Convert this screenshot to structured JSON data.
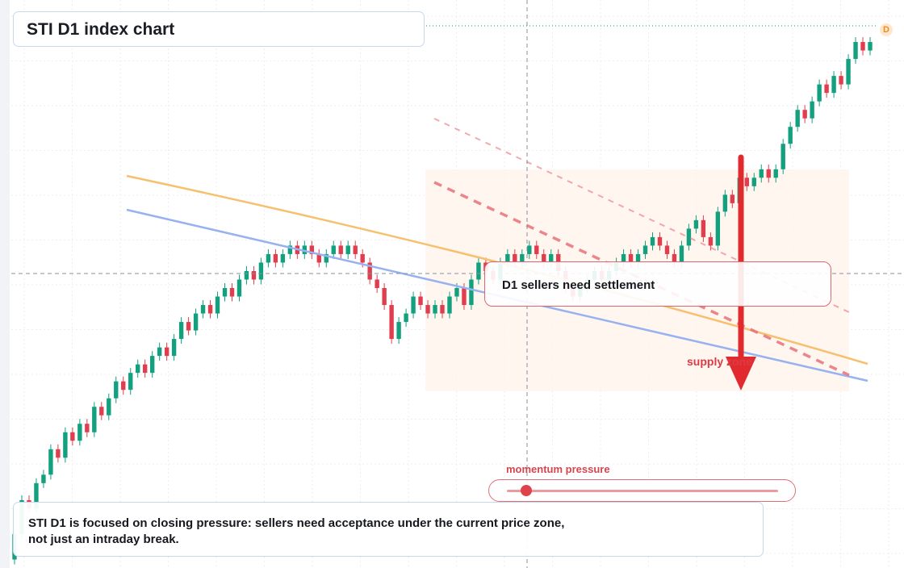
{
  "title": "STI D1 index chart",
  "callout": "D1 sellers need settlement",
  "supply_label": "supply zone",
  "momentum": {
    "label": "momentum pressure",
    "level": 0.07
  },
  "note": {
    "line1": "STI D1 is focused on closing pressure: sellers need acceptance under the current price zone,",
    "line2": "not just an intraday break."
  },
  "badge": "D",
  "colors": {
    "up": "#12a07e",
    "down": "#e03e4e",
    "ma_fast": "#f6c06f",
    "ma_slow": "#98b2f0",
    "trend": "#e8727a",
    "arrow": "#e02a2e",
    "zone": "#fff4ec"
  },
  "chart_data": {
    "type": "candlestick",
    "timeframe": "D1",
    "ylim": [
      96,
      162
    ],
    "grid": true,
    "candles": [
      [
        97,
        100
      ],
      [
        100,
        104
      ],
      [
        104,
        103
      ],
      [
        103,
        106
      ],
      [
        106,
        107
      ],
      [
        107,
        110
      ],
      [
        110,
        109
      ],
      [
        109,
        112
      ],
      [
        112,
        111
      ],
      [
        111,
        113
      ],
      [
        113,
        112
      ],
      [
        112,
        115
      ],
      [
        115,
        114
      ],
      [
        114,
        116
      ],
      [
        116,
        118
      ],
      [
        118,
        117
      ],
      [
        117,
        119
      ],
      [
        119,
        120
      ],
      [
        120,
        119
      ],
      [
        119,
        121
      ],
      [
        121,
        122
      ],
      [
        122,
        121
      ],
      [
        121,
        123
      ],
      [
        123,
        125
      ],
      [
        125,
        124
      ],
      [
        124,
        126
      ],
      [
        126,
        127
      ],
      [
        127,
        126
      ],
      [
        126,
        128
      ],
      [
        128,
        129
      ],
      [
        129,
        128
      ],
      [
        128,
        130
      ],
      [
        130,
        131
      ],
      [
        131,
        130
      ],
      [
        130,
        132
      ],
      [
        132,
        133
      ],
      [
        133,
        132
      ],
      [
        132,
        133
      ],
      [
        133,
        134
      ],
      [
        134,
        133
      ],
      [
        133,
        134
      ],
      [
        134,
        133
      ],
      [
        133,
        132
      ],
      [
        132,
        133
      ],
      [
        133,
        134
      ],
      [
        134,
        133
      ],
      [
        133,
        134
      ],
      [
        134,
        133
      ],
      [
        133,
        132
      ],
      [
        132,
        130
      ],
      [
        130,
        129
      ],
      [
        129,
        127
      ],
      [
        127,
        123
      ],
      [
        123,
        125
      ],
      [
        125,
        126
      ],
      [
        126,
        128
      ],
      [
        128,
        127
      ],
      [
        127,
        126
      ],
      [
        126,
        127
      ],
      [
        127,
        126
      ],
      [
        126,
        128
      ],
      [
        128,
        129
      ],
      [
        129,
        127
      ],
      [
        127,
        130
      ],
      [
        130,
        132
      ],
      [
        132,
        131
      ],
      [
        131,
        130
      ],
      [
        130,
        132
      ],
      [
        132,
        133
      ],
      [
        133,
        132
      ],
      [
        132,
        133
      ],
      [
        133,
        134
      ],
      [
        134,
        133
      ],
      [
        133,
        132
      ],
      [
        132,
        133
      ],
      [
        133,
        131
      ],
      [
        131,
        129
      ],
      [
        129,
        128
      ],
      [
        128,
        129
      ],
      [
        129,
        130
      ],
      [
        130,
        131
      ],
      [
        131,
        130
      ],
      [
        130,
        131
      ],
      [
        131,
        132
      ],
      [
        132,
        133
      ],
      [
        133,
        132
      ],
      [
        132,
        133
      ],
      [
        133,
        134
      ],
      [
        134,
        135
      ],
      [
        135,
        134
      ],
      [
        134,
        133
      ],
      [
        133,
        132
      ],
      [
        132,
        134
      ],
      [
        134,
        136
      ],
      [
        136,
        137
      ],
      [
        137,
        135
      ],
      [
        135,
        134
      ],
      [
        134,
        138
      ],
      [
        138,
        140
      ],
      [
        140,
        139
      ],
      [
        139,
        142
      ],
      [
        142,
        141
      ],
      [
        141,
        142
      ],
      [
        142,
        143
      ],
      [
        143,
        142
      ],
      [
        142,
        143
      ],
      [
        143,
        146
      ],
      [
        146,
        148
      ],
      [
        148,
        150
      ],
      [
        150,
        149
      ],
      [
        149,
        151
      ],
      [
        151,
        153
      ],
      [
        153,
        152
      ],
      [
        152,
        154
      ],
      [
        154,
        153
      ],
      [
        153,
        156
      ],
      [
        156,
        158
      ],
      [
        158,
        157
      ],
      [
        157,
        158
      ]
    ],
    "trendlines": {
      "ma_fast": [
        [
          0,
          146
        ],
        [
          117,
          131
        ]
      ],
      "ma_slow": [
        [
          0,
          142
        ],
        [
          117,
          130
        ]
      ],
      "resistance_dashed": [
        [
          0,
          146
        ],
        [
          117,
          133
        ]
      ]
    }
  }
}
